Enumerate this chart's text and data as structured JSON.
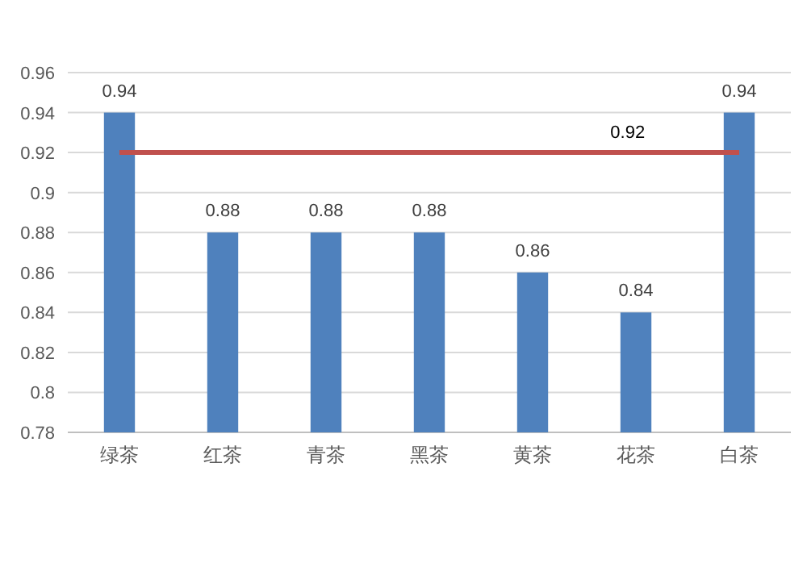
{
  "chart_data": {
    "type": "bar",
    "categories": [
      "绿茶",
      "红茶",
      "青茶",
      "黑茶",
      "黄茶",
      "花茶",
      "白茶"
    ],
    "values": [
      0.94,
      0.88,
      0.88,
      0.88,
      0.86,
      0.84,
      0.94
    ],
    "color": "#4f81bd",
    "ylim": [
      0.78,
      0.96
    ],
    "yticks": [
      0.78,
      0.8,
      0.82,
      0.84,
      0.86,
      0.88,
      0.9,
      0.92,
      0.94,
      0.96
    ],
    "grid": "y",
    "data_labels": true,
    "ref_lines": [
      {
        "axis": "y",
        "value": 0.92,
        "label": "0.92",
        "color": "#c0504d"
      }
    ]
  }
}
